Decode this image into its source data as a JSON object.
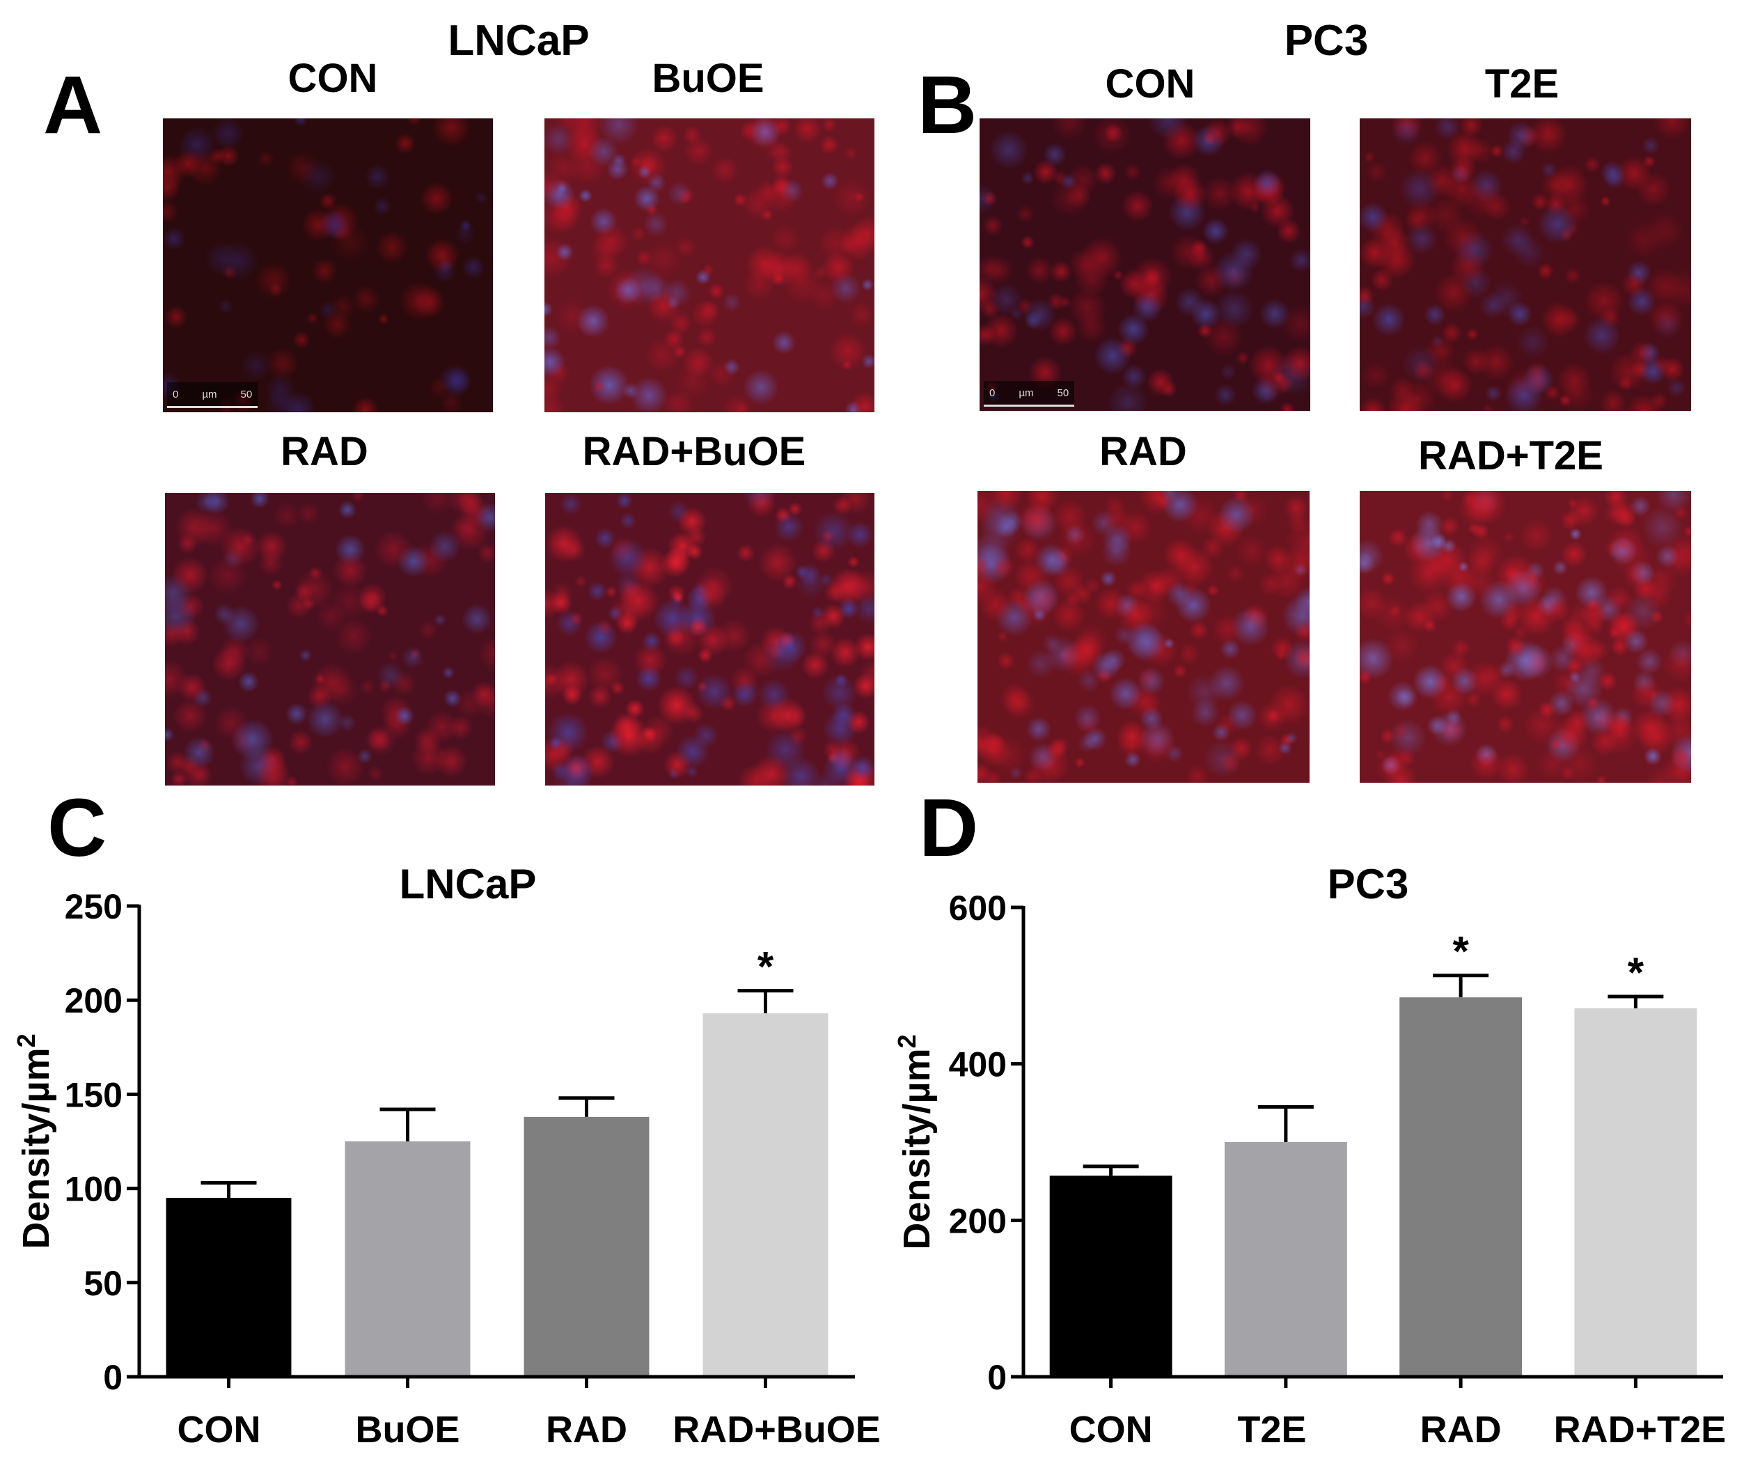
{
  "panels": {
    "A": {
      "letter": "A",
      "cell_line": "LNCaP",
      "images": [
        {
          "label": "CON",
          "tint": "#2a0a0c",
          "spot": "#a0101a",
          "nuclei": "#3a2a80",
          "density": 0.15
        },
        {
          "label": "BuOE",
          "tint": "#6a1522",
          "spot": "#d01828",
          "nuclei": "#6a6ad8",
          "density": 0.55
        },
        {
          "label": "RAD",
          "tint": "#4a1020",
          "spot": "#c0182a",
          "nuclei": "#5560c8",
          "density": 0.45
        },
        {
          "label": "RAD+BuOE",
          "tint": "#5a1222",
          "spot": "#ff2030",
          "nuclei": "#4a4ab8",
          "density": 0.7
        }
      ],
      "scale": {
        "zero": "0",
        "unit": "µm",
        "value": "50"
      }
    },
    "B": {
      "letter": "B",
      "cell_line": "PC3",
      "images": [
        {
          "label": "CON",
          "tint": "#3a0c18",
          "spot": "#c41424",
          "nuclei": "#4a4aa8",
          "density": 0.4
        },
        {
          "label": "T2E",
          "tint": "#4a0e18",
          "spot": "#c81622",
          "nuclei": "#4a4ab0",
          "density": 0.5
        },
        {
          "label": "RAD",
          "tint": "#6a1420",
          "spot": "#d61a28",
          "nuclei": "#6a6ad0",
          "density": 0.75
        },
        {
          "label": "RAD+T2E",
          "tint": "#701622",
          "spot": "#d81a2a",
          "nuclei": "#7a7ae0",
          "density": 0.85
        }
      ],
      "scale": {
        "zero": "0",
        "unit": "µm",
        "value": "50"
      }
    },
    "C": {
      "letter": "C"
    },
    "D": {
      "letter": "D"
    }
  },
  "chart_data": [
    {
      "type": "bar",
      "title": "LNCaP",
      "ylabel": "Density/µm",
      "ylabel_superscript": "2",
      "categories": [
        "CON",
        "BuOE",
        "RAD",
        "RAD+BuOE"
      ],
      "values": [
        95,
        125,
        138,
        193
      ],
      "errors": [
        8,
        17,
        10,
        12
      ],
      "significance": [
        "",
        "",
        "",
        "*"
      ],
      "colors": [
        "#000000",
        "#a3a3a8",
        "#7f7f7f",
        "#d3d3d3"
      ],
      "ylim": [
        0,
        250
      ],
      "yticks": [
        0,
        50,
        100,
        150,
        200,
        250
      ],
      "grid": false
    },
    {
      "type": "bar",
      "title": "PC3",
      "ylabel": "Density/µm",
      "ylabel_superscript": "2",
      "categories": [
        "CON",
        "T2E",
        "RAD",
        "RAD+T2E"
      ],
      "values": [
        257,
        300,
        485,
        471
      ],
      "errors": [
        12,
        45,
        28,
        15
      ],
      "significance": [
        "",
        "",
        "*",
        "*"
      ],
      "colors": [
        "#000000",
        "#a3a3a8",
        "#7f7f7f",
        "#d3d3d3"
      ],
      "ylim": [
        0,
        600
      ],
      "yticks": [
        0,
        200,
        400,
        600
      ],
      "grid": false
    }
  ]
}
